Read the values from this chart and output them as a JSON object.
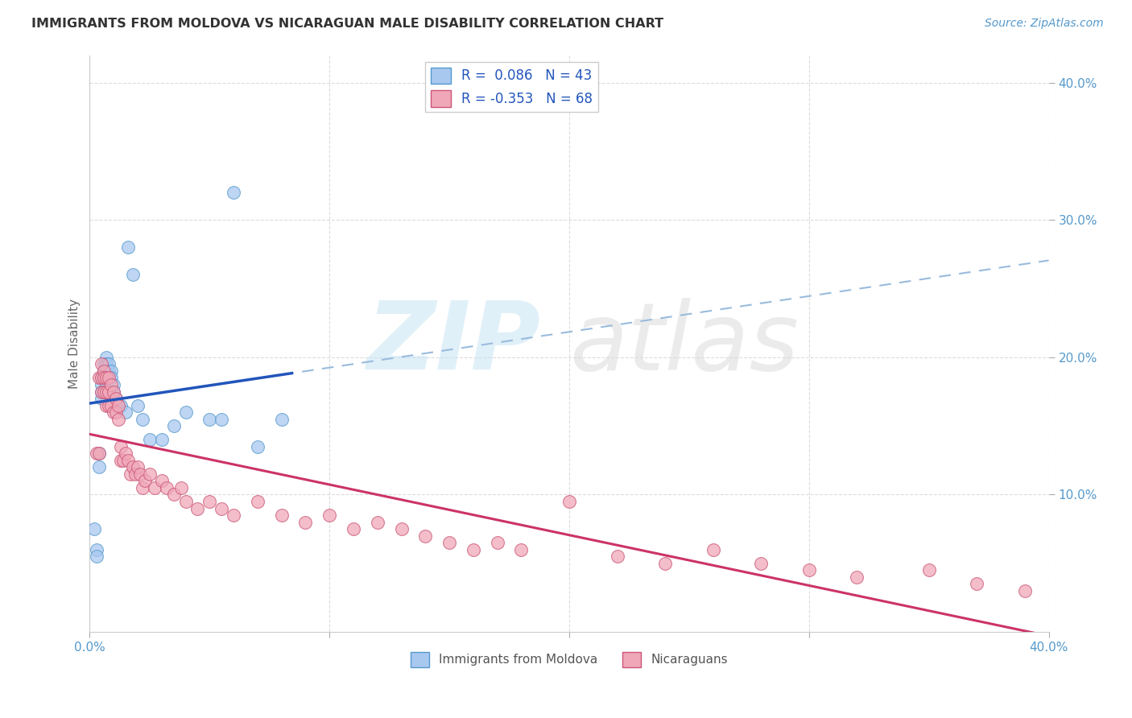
{
  "title": "IMMIGRANTS FROM MOLDOVA VS NICARAGUAN MALE DISABILITY CORRELATION CHART",
  "source_text": "Source: ZipAtlas.com",
  "ylabel": "Male Disability",
  "xlim": [
    0.0,
    0.4
  ],
  "ylim": [
    0.0,
    0.42
  ],
  "yticks": [
    0.1,
    0.2,
    0.3,
    0.4
  ],
  "ytick_labels": [
    "10.0%",
    "20.0%",
    "30.0%",
    "40.0%"
  ],
  "xticks": [
    0.0,
    0.1,
    0.2,
    0.3,
    0.4
  ],
  "xtick_labels": [
    "0.0%",
    "",
    "",
    "",
    "40.0%"
  ],
  "moldova_color": "#a8c8f0",
  "moldova_edge_color": "#5599cc",
  "nicaragua_color": "#f0a8b8",
  "nicaragua_edge_color": "#cc5577",
  "trend_blue_solid": "#2255bb",
  "trend_blue_dash": "#99bbdd",
  "trend_pink": "#cc3366",
  "background_color": "#ffffff",
  "grid_color": "#cccccc",
  "axis_tick_color": "#5599cc",
  "title_color": "#333333",
  "source_color": "#5599cc",
  "ylabel_color": "#666666",
  "moldova_x": [
    0.002,
    0.003,
    0.003,
    0.004,
    0.004,
    0.005,
    0.005,
    0.005,
    0.005,
    0.006,
    0.006,
    0.006,
    0.006,
    0.007,
    0.007,
    0.007,
    0.007,
    0.007,
    0.008,
    0.008,
    0.008,
    0.008,
    0.009,
    0.009,
    0.01,
    0.01,
    0.011,
    0.012,
    0.013,
    0.015,
    0.016,
    0.018,
    0.02,
    0.022,
    0.025,
    0.03,
    0.035,
    0.04,
    0.05,
    0.055,
    0.06,
    0.07,
    0.08
  ],
  "moldova_y": [
    0.075,
    0.06,
    0.055,
    0.13,
    0.12,
    0.185,
    0.18,
    0.175,
    0.17,
    0.195,
    0.19,
    0.185,
    0.175,
    0.2,
    0.195,
    0.19,
    0.185,
    0.18,
    0.195,
    0.19,
    0.185,
    0.175,
    0.19,
    0.185,
    0.18,
    0.175,
    0.17,
    0.165,
    0.165,
    0.16,
    0.28,
    0.26,
    0.165,
    0.155,
    0.14,
    0.14,
    0.15,
    0.16,
    0.155,
    0.155,
    0.32,
    0.135,
    0.155
  ],
  "nicaragua_x": [
    0.003,
    0.004,
    0.004,
    0.005,
    0.005,
    0.005,
    0.006,
    0.006,
    0.006,
    0.007,
    0.007,
    0.007,
    0.008,
    0.008,
    0.008,
    0.009,
    0.009,
    0.01,
    0.01,
    0.011,
    0.011,
    0.012,
    0.012,
    0.013,
    0.013,
    0.014,
    0.015,
    0.016,
    0.017,
    0.018,
    0.019,
    0.02,
    0.021,
    0.022,
    0.023,
    0.025,
    0.027,
    0.03,
    0.032,
    0.035,
    0.038,
    0.04,
    0.045,
    0.05,
    0.055,
    0.06,
    0.07,
    0.08,
    0.09,
    0.1,
    0.11,
    0.12,
    0.13,
    0.14,
    0.15,
    0.16,
    0.17,
    0.18,
    0.2,
    0.22,
    0.24,
    0.26,
    0.28,
    0.3,
    0.32,
    0.35,
    0.37,
    0.39
  ],
  "nicaragua_y": [
    0.13,
    0.185,
    0.13,
    0.195,
    0.185,
    0.175,
    0.19,
    0.185,
    0.175,
    0.185,
    0.175,
    0.165,
    0.185,
    0.175,
    0.165,
    0.18,
    0.165,
    0.175,
    0.16,
    0.17,
    0.16,
    0.165,
    0.155,
    0.135,
    0.125,
    0.125,
    0.13,
    0.125,
    0.115,
    0.12,
    0.115,
    0.12,
    0.115,
    0.105,
    0.11,
    0.115,
    0.105,
    0.11,
    0.105,
    0.1,
    0.105,
    0.095,
    0.09,
    0.095,
    0.09,
    0.085,
    0.095,
    0.085,
    0.08,
    0.085,
    0.075,
    0.08,
    0.075,
    0.07,
    0.065,
    0.06,
    0.065,
    0.06,
    0.095,
    0.055,
    0.05,
    0.06,
    0.05,
    0.045,
    0.04,
    0.045,
    0.035,
    0.03
  ]
}
